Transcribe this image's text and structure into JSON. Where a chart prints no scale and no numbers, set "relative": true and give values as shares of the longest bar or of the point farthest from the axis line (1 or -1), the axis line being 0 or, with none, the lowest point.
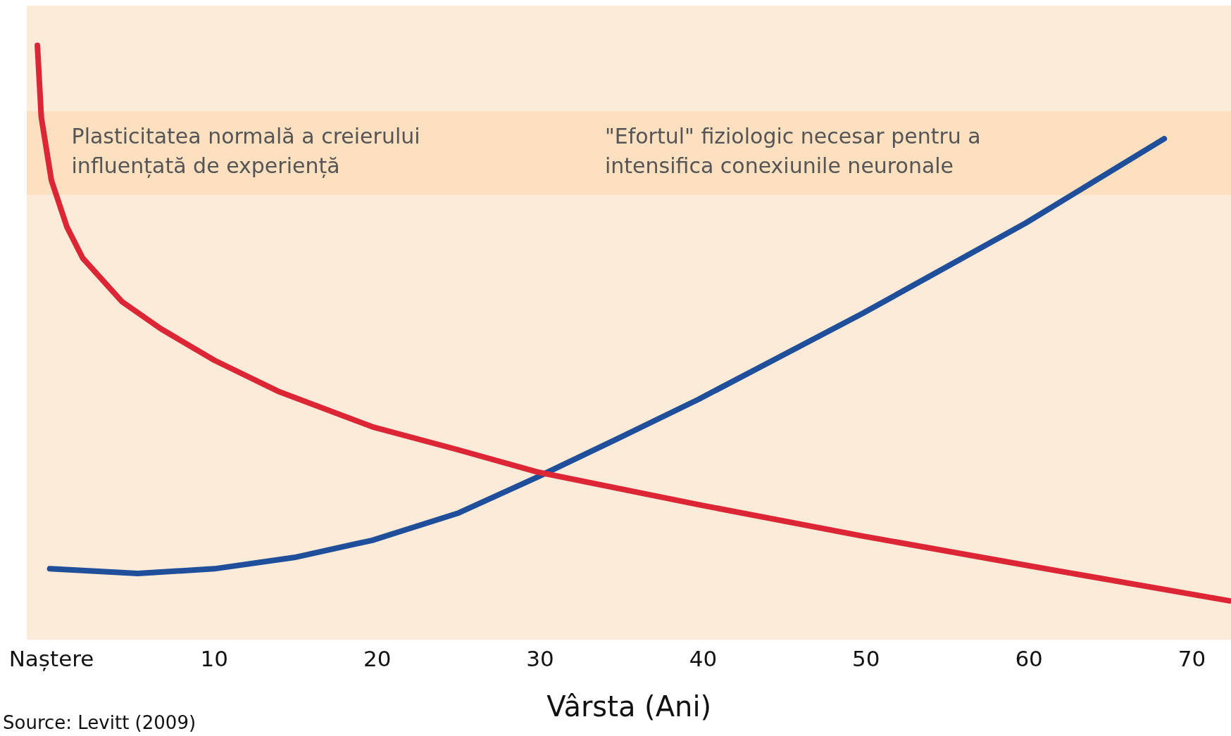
{
  "chart_data": {
    "type": "line",
    "relative": true,
    "xlabel": "Vârsta (Ani)",
    "xlim": [
      -1.5,
      72.4
    ],
    "xticks": [
      {
        "value": 0,
        "label": "Naștere"
      },
      10,
      20,
      30,
      40,
      50,
      60,
      70
    ],
    "grid": false,
    "legend": false,
    "marker": "none",
    "line_style": "solid",
    "annotations": [
      "Plasticitatea normală a creierului influențată de experiență",
      "\"Efortul\" fiziologic necesar pentru a intensifica conexiunile neuronale",
      "Source: Levitt (2009)"
    ],
    "series": [
      {
        "color": "#dc2635",
        "x": [
          -0.86,
          -0.62,
          0,
          0.96,
          1.92,
          4.32,
          6.72,
          10,
          13.9,
          19.7,
          25,
          29.8,
          39.7,
          49.8,
          59.8,
          72.3
        ],
        "values": [
          1.0,
          0.879,
          0.773,
          0.694,
          0.642,
          0.569,
          0.523,
          0.47,
          0.418,
          0.358,
          0.319,
          0.282,
          0.227,
          0.174,
          0.125,
          0.065
        ]
      },
      {
        "color": "#1f4e9a",
        "x": [
          -0.1,
          5.3,
          10,
          14.9,
          19.7,
          25,
          29.8,
          34.6,
          39.7,
          49.8,
          59.8,
          68.3
        ],
        "values": [
          0.119,
          0.111,
          0.119,
          0.138,
          0.167,
          0.213,
          0.273,
          0.336,
          0.404,
          0.549,
          0.701,
          0.843
        ]
      }
    ]
  }
}
